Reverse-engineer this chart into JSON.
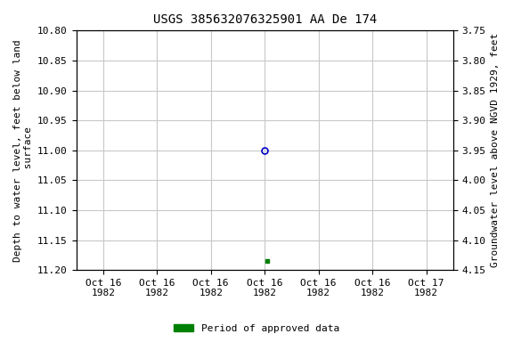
{
  "title": "USGS 385632076325901 AA De 174",
  "left_ylabel": "Depth to water level, feet below land\n surface",
  "right_ylabel": "Groundwater level above NGVD 1929, feet",
  "ylim_left_top": 10.8,
  "ylim_left_bottom": 11.2,
  "ylim_right_top": 4.15,
  "ylim_right_bottom": 3.75,
  "left_yticks": [
    10.8,
    10.85,
    10.9,
    10.95,
    11.0,
    11.05,
    11.1,
    11.15,
    11.2
  ],
  "right_yticks": [
    4.15,
    4.1,
    4.05,
    4.0,
    3.95,
    3.9,
    3.85,
    3.8,
    3.75
  ],
  "right_ytick_labels": [
    "4.15",
    "4.10",
    "4.05",
    "4.00",
    "3.95",
    "3.90",
    "3.85",
    "3.80",
    "3.75"
  ],
  "xtick_labels": [
    "Oct 16\n1982",
    "Oct 16\n1982",
    "Oct 16\n1982",
    "Oct 16\n1982",
    "Oct 16\n1982",
    "Oct 16\n1982",
    "Oct 17\n1982"
  ],
  "xtick_positions": [
    0,
    1,
    2,
    3,
    4,
    5,
    6
  ],
  "point_blue_x": 3.0,
  "point_blue_y": 11.0,
  "point_green_x": 3.05,
  "point_green_y": 11.185,
  "blue_color": "#0000cc",
  "green_color": "#008000",
  "grid_color": "#c8c8c8",
  "bg_color": "#ffffff",
  "title_fontsize": 10,
  "label_fontsize": 8,
  "tick_fontsize": 8,
  "legend_label": "Period of approved data",
  "legend_color": "#008000"
}
